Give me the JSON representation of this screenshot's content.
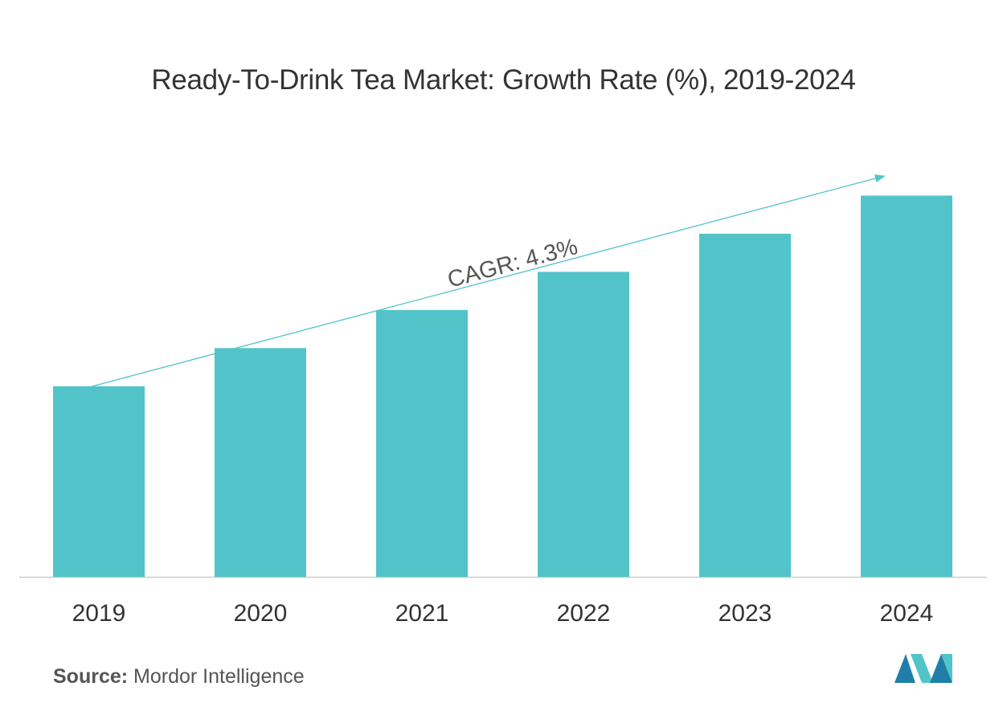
{
  "chart_data": {
    "type": "bar",
    "title": "Ready-To-Drink Tea Market: Growth Rate (%), 2019-2024",
    "categories": [
      "2019",
      "2020",
      "2021",
      "2022",
      "2023",
      "2024"
    ],
    "values": [
      1.0,
      1.2,
      1.4,
      1.6,
      1.8,
      2.0
    ],
    "ylim": [
      0,
      2.2
    ],
    "xlabel": "",
    "ylabel": "",
    "grid": false,
    "show_y_axis": false,
    "annotation": {
      "text": "CAGR: 4.3%",
      "type": "trend-arrow",
      "from_category": "2019",
      "to_category": "2024",
      "start_value": 1.0,
      "end_value": 2.1
    }
  },
  "colors": {
    "bar": "#52C4C9",
    "arrow": "#52C4C9",
    "baseline": "#cccccc",
    "text": "#333333",
    "logo_dark": "#1f7fa8",
    "logo_light": "#52C4C9"
  },
  "source": {
    "label": "Source:",
    "text": "Mordor Intelligence"
  },
  "logo": {
    "icon": "mordor-intelligence-logo-icon"
  }
}
